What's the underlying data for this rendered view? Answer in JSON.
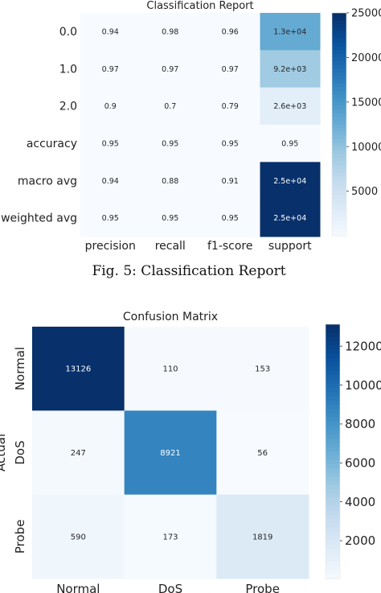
{
  "chart_data": [
    {
      "type": "heatmap",
      "title": "Classification Report",
      "caption": "Fig. 5: Classification Report",
      "rows": [
        "0.0",
        "1.0",
        "2.0",
        "accuracy",
        "macro avg",
        "weighted avg"
      ],
      "columns": [
        "precision",
        "recall",
        "f1-score",
        "support"
      ],
      "values": [
        [
          0.94,
          0.98,
          0.96,
          13000
        ],
        [
          0.97,
          0.97,
          0.97,
          9200
        ],
        [
          0.9,
          0.7,
          0.79,
          2600
        ],
        [
          0.95,
          0.95,
          0.95,
          0.95
        ],
        [
          0.94,
          0.88,
          0.91,
          25000
        ],
        [
          0.95,
          0.95,
          0.95,
          25000
        ]
      ],
      "annotations": [
        [
          "0.94",
          "0.98",
          "0.96",
          "1.3e+04"
        ],
        [
          "0.97",
          "0.97",
          "0.97",
          "9.2e+03"
        ],
        [
          "0.9",
          "0.7",
          "0.79",
          "2.6e+03"
        ],
        [
          "0.95",
          "0.95",
          "0.95",
          "0.95"
        ],
        [
          "0.94",
          "0.88",
          "0.91",
          "2.5e+04"
        ],
        [
          "0.95",
          "0.95",
          "0.95",
          "2.5e+04"
        ]
      ],
      "colorbar": {
        "min": 0,
        "max": 25000,
        "ticks": [
          5000,
          10000,
          15000,
          20000,
          25000
        ],
        "colormap": "Blues"
      }
    },
    {
      "type": "heatmap",
      "title": "Confusion Matrix",
      "ylabel": "Actual",
      "rows": [
        "Normal",
        "DoS",
        "Probe"
      ],
      "columns": [
        "Normal",
        "DoS",
        "Probe"
      ],
      "values": [
        [
          13126,
          110,
          153
        ],
        [
          247,
          8921,
          56
        ],
        [
          590,
          173,
          1819
        ]
      ],
      "colorbar": {
        "min": 56,
        "max": 13126,
        "ticks": [
          2000,
          4000,
          6000,
          8000,
          10000,
          12000
        ],
        "colormap": "Blues"
      }
    }
  ]
}
